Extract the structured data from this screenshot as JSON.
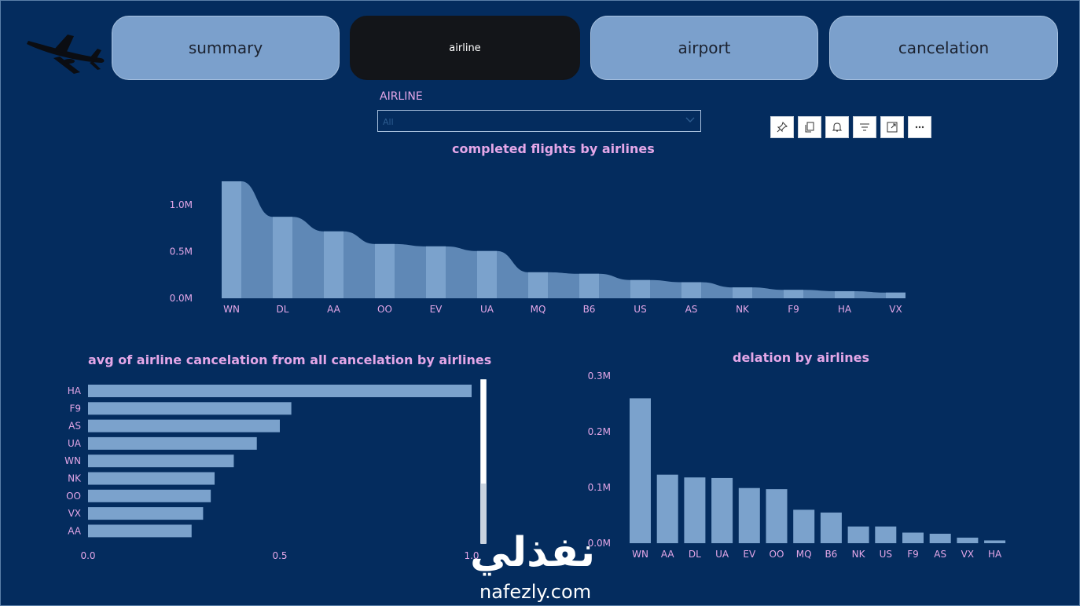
{
  "nav": {
    "tabs": [
      {
        "label": "summary"
      },
      {
        "label": "airline"
      },
      {
        "label": "airport"
      },
      {
        "label": "cancelation"
      }
    ],
    "active_index": 1
  },
  "filter": {
    "label": "AIRLINE",
    "value": "All"
  },
  "toolbar": {
    "icons": [
      "pin-icon",
      "copy-icon",
      "bell-icon",
      "filter-icon",
      "focus-mode-icon",
      "more-options-icon"
    ]
  },
  "colors": {
    "background": "#042c5e",
    "bar": "#7ba2cc",
    "area": "#5f88b6",
    "title": "#e4a7e8",
    "tick": "#e4a7e8"
  },
  "chart_data": [
    {
      "type": "bar",
      "title": "completed flights by airlines",
      "categories": [
        "WN",
        "DL",
        "AA",
        "OO",
        "EV",
        "UA",
        "MQ",
        "B6",
        "US",
        "AS",
        "NK",
        "F9",
        "HA",
        "VX"
      ],
      "values": [
        1250000,
        870000,
        715000,
        580000,
        555000,
        505000,
        278000,
        262000,
        195000,
        172000,
        116000,
        90000,
        76000,
        61000
      ],
      "ylim": [
        0,
        1300000
      ],
      "yticks": [
        "0.0M",
        "0.5M",
        "1.0M"
      ],
      "ytick_values": [
        0,
        500000,
        1000000
      ],
      "grid": false
    },
    {
      "type": "bar",
      "orientation": "horizontal",
      "title": "avg of airline cancelation from all cancelation by airlines",
      "categories": [
        "HA",
        "F9",
        "AS",
        "UA",
        "WN",
        "NK",
        "OO",
        "VX",
        "AA"
      ],
      "values": [
        1.0,
        0.53,
        0.5,
        0.44,
        0.38,
        0.33,
        0.32,
        0.3,
        0.27
      ],
      "xlim": [
        0,
        1.0
      ],
      "xticks": [
        "0.0",
        "0.5",
        "1.0"
      ],
      "xtick_values": [
        0,
        0.5,
        1.0
      ],
      "grid": false
    },
    {
      "type": "bar",
      "title": "delation by airlines",
      "categories": [
        "WN",
        "AA",
        "DL",
        "UA",
        "EV",
        "OO",
        "MQ",
        "B6",
        "NK",
        "US",
        "F9",
        "AS",
        "VX",
        "HA"
      ],
      "values": [
        260000,
        123000,
        118000,
        117000,
        99000,
        97000,
        60000,
        55000,
        30000,
        30000,
        19000,
        17000,
        10000,
        5000
      ],
      "ylim": [
        0,
        300000
      ],
      "yticks": [
        "0.0M",
        "0.1M",
        "0.2M",
        "0.3M"
      ],
      "ytick_values": [
        0,
        100000,
        200000,
        300000
      ],
      "grid": false
    }
  ],
  "watermark": {
    "arabic": "نفذلي",
    "latin": "nafezly.com"
  }
}
